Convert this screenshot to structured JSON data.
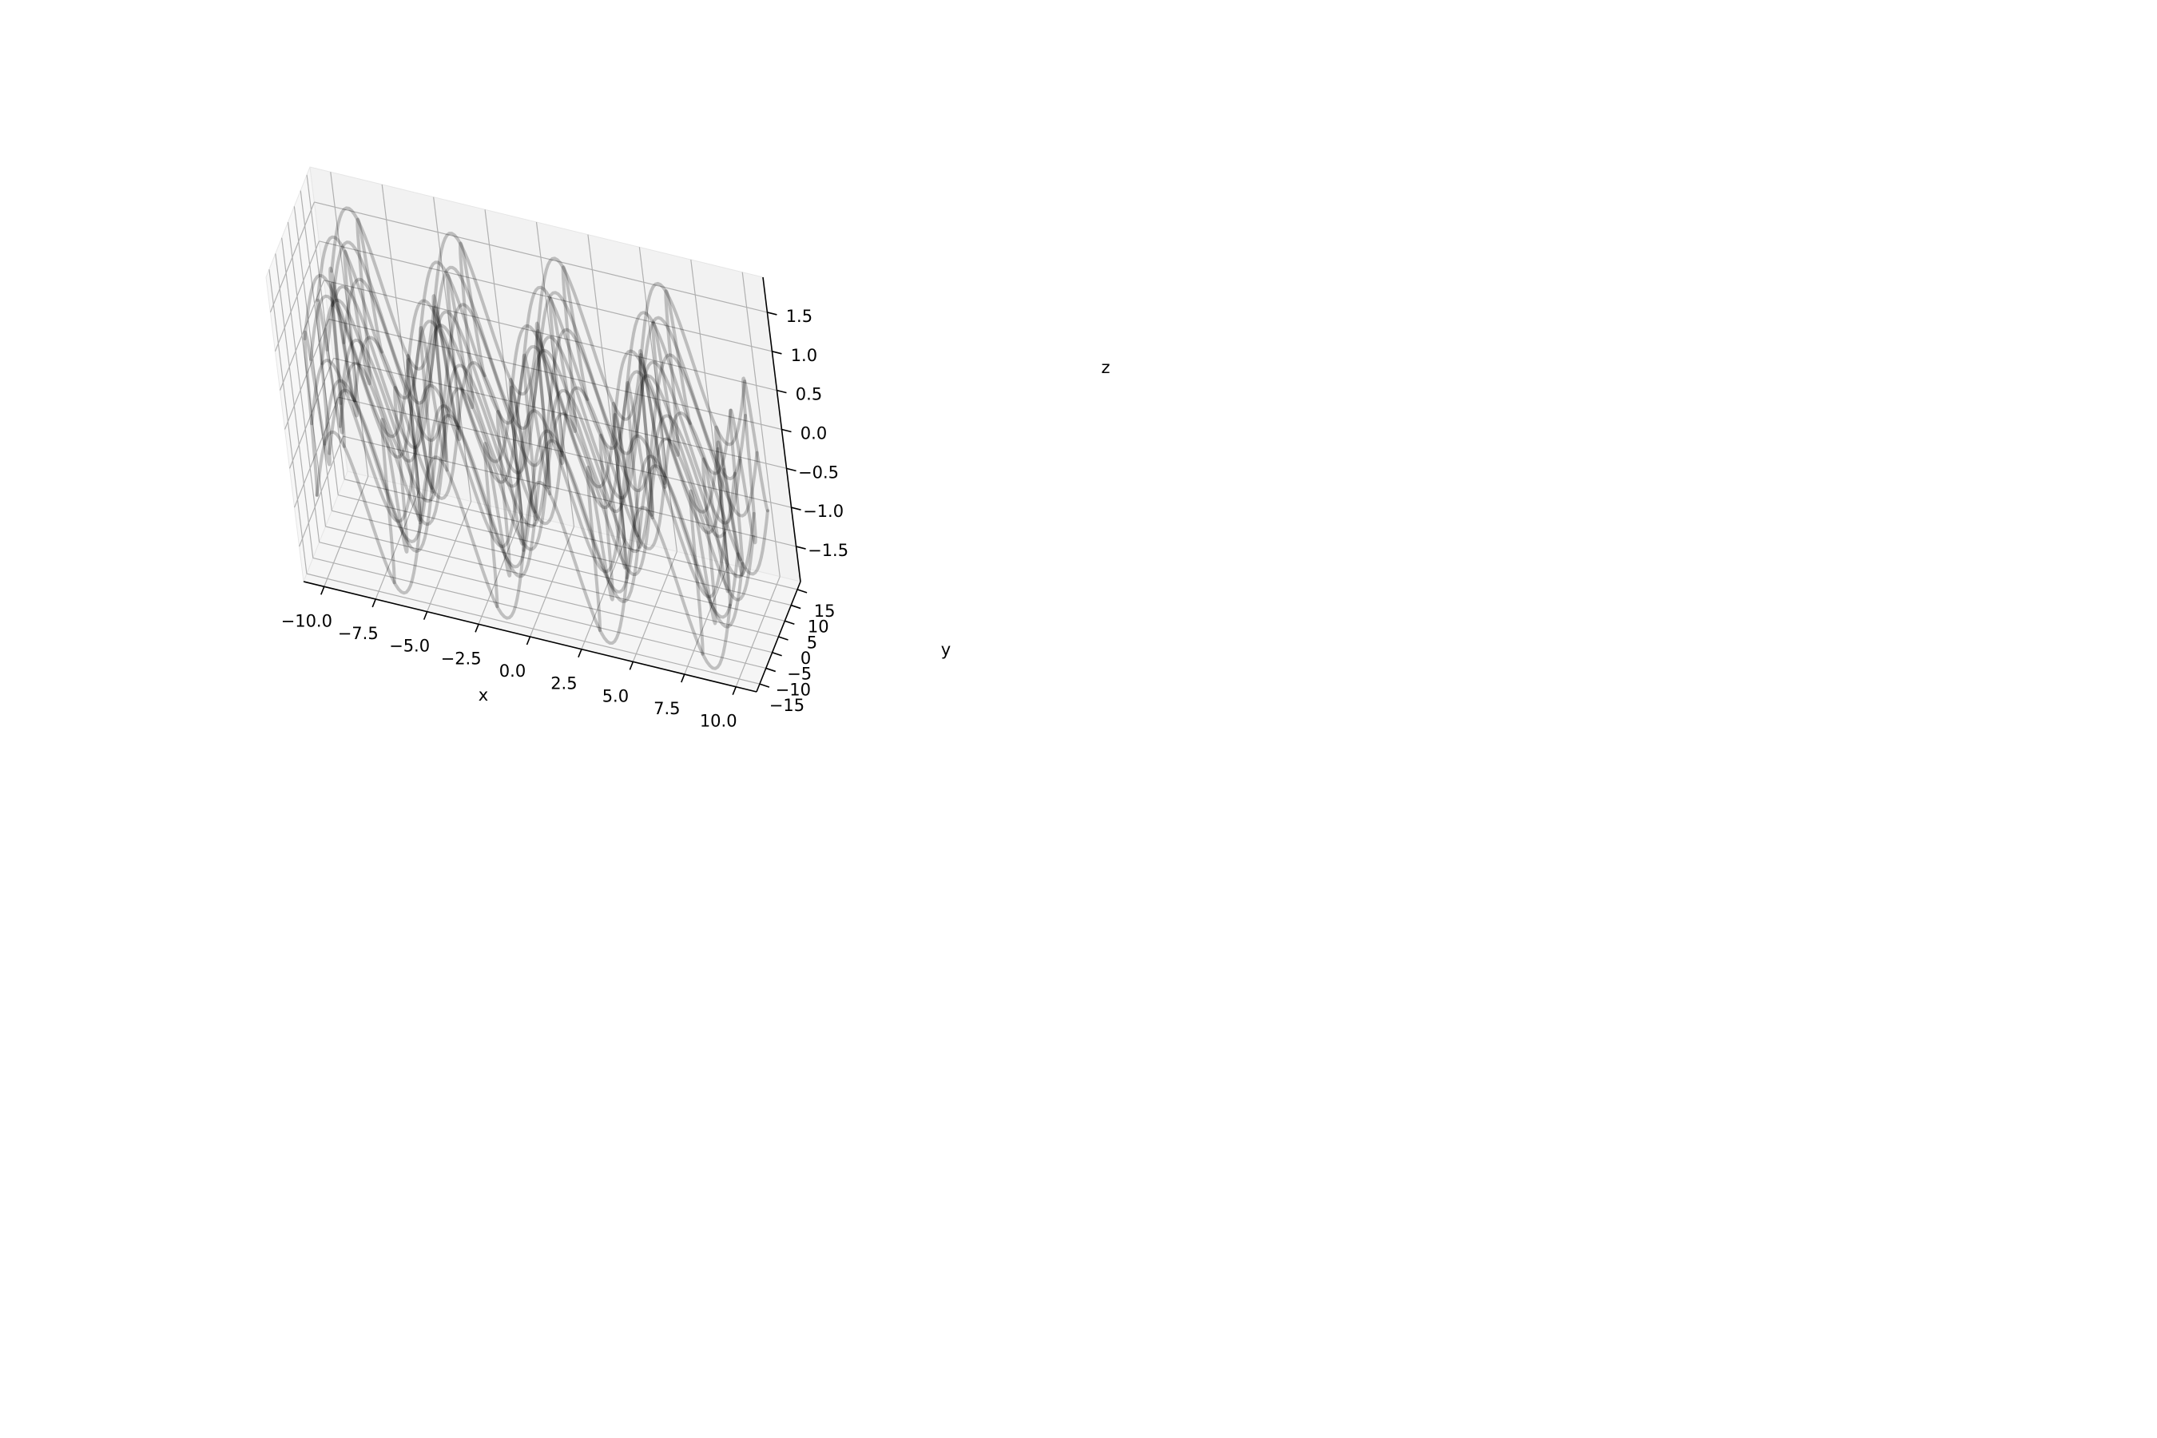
{
  "chart_data": {
    "type": "wireframe-3d",
    "title": "",
    "xlabel": "x",
    "ylabel": "y",
    "zlabel": "z",
    "xlim": [
      -11.0,
      11.0
    ],
    "ylim": [
      -17.5,
      17.5
    ],
    "zlim": [
      -1.95,
      1.95
    ],
    "xticks": [
      -10.0,
      -7.5,
      -5.0,
      -2.5,
      0.0,
      2.5,
      5.0,
      7.5,
      10.0
    ],
    "yticks": [
      -15,
      -10,
      -5,
      0,
      5,
      10,
      15
    ],
    "zticks": [
      -1.5,
      -1.0,
      -0.5,
      0.0,
      0.5,
      1.0,
      1.5
    ],
    "xtick_labels": [
      "−10.0",
      "−7.5",
      "−5.0",
      "−2.5",
      "0.0",
      "2.5",
      "5.0",
      "7.5",
      "10.0"
    ],
    "ytick_labels": [
      "−15",
      "−10",
      "−5",
      "0",
      "5",
      "10",
      "15"
    ],
    "ztick_labels": [
      "−1.5",
      "−1.0",
      "−0.5",
      "0.0",
      "0.5",
      "1.0",
      "1.5"
    ],
    "grid": true,
    "surface": {
      "x_range": [
        -10.0,
        10.0
      ],
      "y_range": [
        -15.0,
        15.0
      ],
      "z_range": [
        -1.9,
        1.9
      ],
      "x_lines": 13,
      "y_lines": 15
    },
    "line_color": "#000000",
    "line_alpha": 0.22,
    "pane_colors": {
      "back": "#f2f2f2",
      "left": "#f7f7f7",
      "floor": "#f5f5f5"
    },
    "grid_color": "#b0b0b0"
  }
}
